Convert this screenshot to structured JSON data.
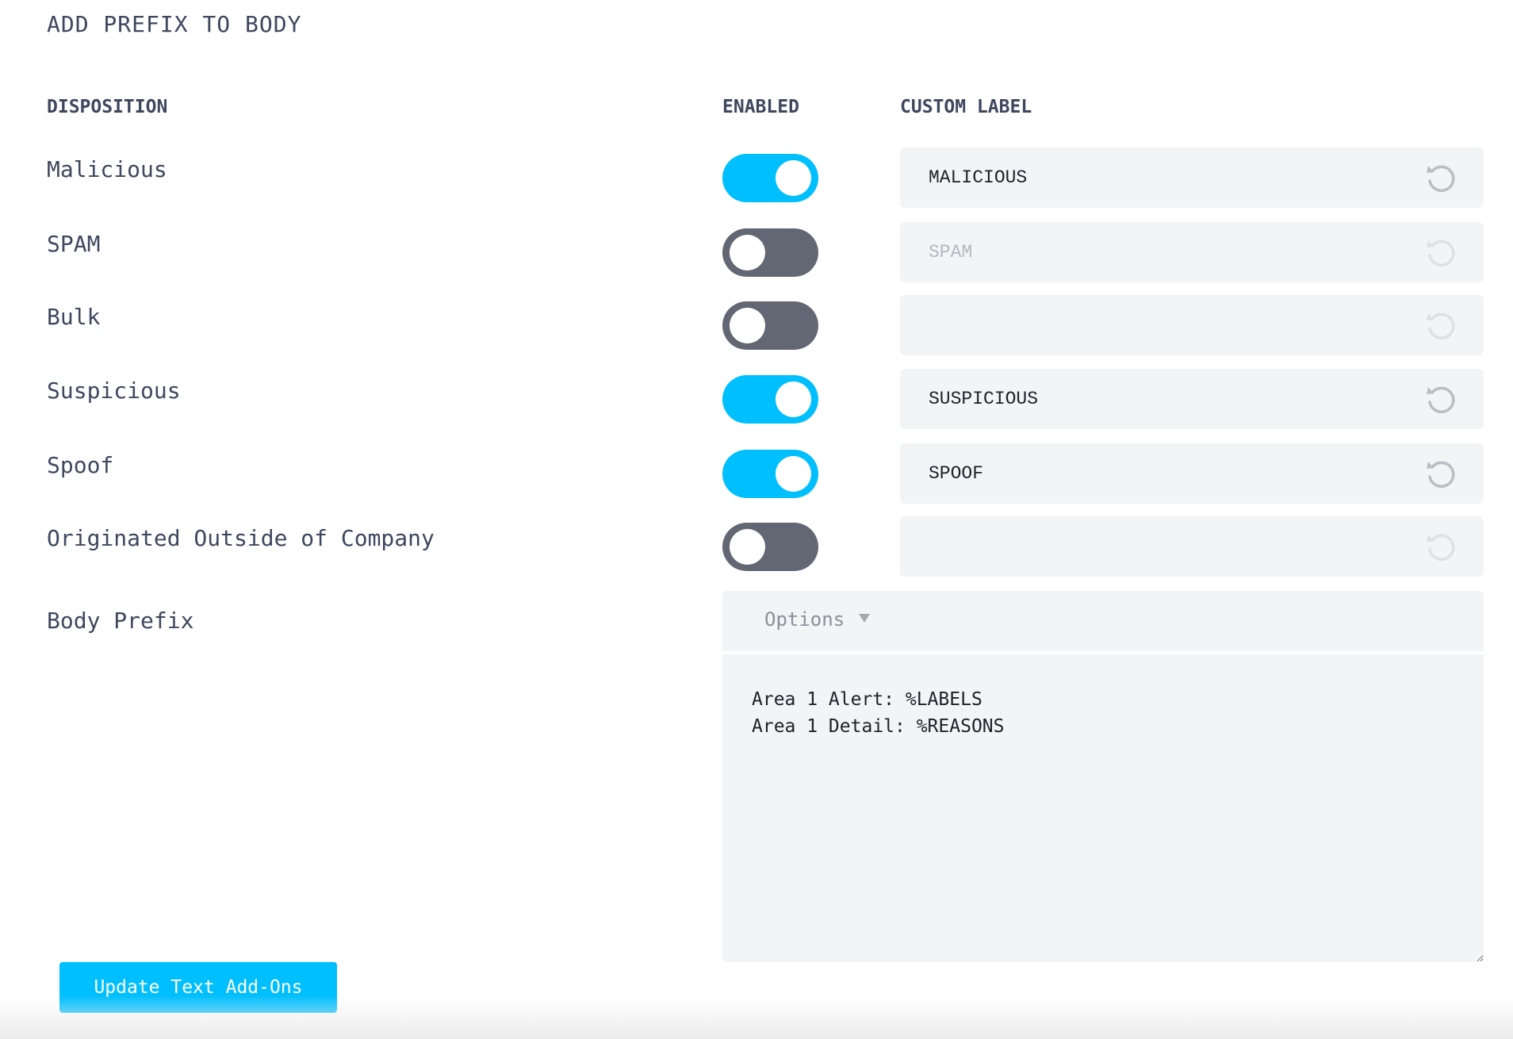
{
  "title": "ADD PREFIX TO BODY",
  "columns": {
    "disposition": "DISPOSITION",
    "enabled": "ENABLED",
    "custom_label": "CUSTOM LABEL"
  },
  "rows": [
    {
      "label": "Malicious",
      "enabled": true,
      "value": "MALICIOUS",
      "placeholder": ""
    },
    {
      "label": "SPAM",
      "enabled": false,
      "value": "",
      "placeholder": "SPAM"
    },
    {
      "label": "Bulk",
      "enabled": false,
      "value": "",
      "placeholder": ""
    },
    {
      "label": "Suspicious",
      "enabled": true,
      "value": "SUSPICIOUS",
      "placeholder": ""
    },
    {
      "label": "Spoof",
      "enabled": true,
      "value": "SPOOF",
      "placeholder": ""
    },
    {
      "label": "Originated Outside of Company",
      "enabled": false,
      "value": "",
      "placeholder": ""
    }
  ],
  "body_prefix": {
    "label": "Body Prefix",
    "options_label": "Options",
    "text": "Area 1 Alert: %LABELS\nArea 1 Detail: %REASONS"
  },
  "submit_label": "Update Text Add-Ons",
  "colors": {
    "accent": "#00bfff",
    "toggle_off": "#636774",
    "field_bg": "#f2f4f5"
  },
  "icons": {
    "reset": "reset-icon",
    "dropdown": "caret-down-icon"
  }
}
